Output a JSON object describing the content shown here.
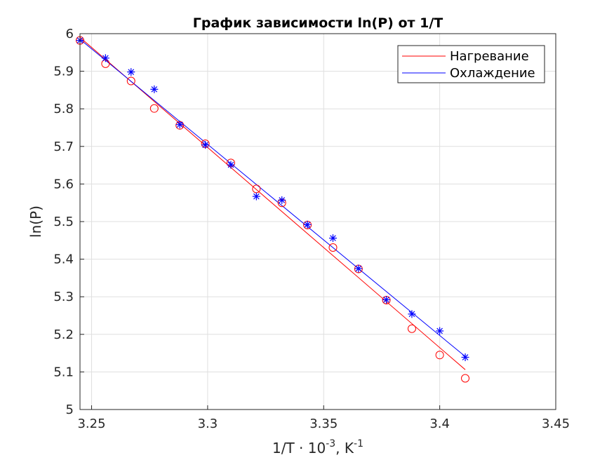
{
  "chart_data": {
    "type": "scatter",
    "title": "График зависимости ln(P) от 1/T",
    "xlabel": {
      "main": "1/T · 10",
      "exp1": "-3",
      "mid": ", K",
      "exp2": "-1"
    },
    "ylabel": "ln(P)",
    "xlim": [
      3.245,
      3.45
    ],
    "ylim": [
      5,
      6
    ],
    "xticks": [
      3.25,
      3.3,
      3.35,
      3.4,
      3.45
    ],
    "xtick_labels": [
      "3.25",
      "3.3",
      "3.35",
      "3.4",
      "3.45"
    ],
    "yticks": [
      5,
      5.1,
      5.2,
      5.3,
      5.4,
      5.5,
      5.6,
      5.7,
      5.8,
      5.9,
      6
    ],
    "ytick_labels": [
      "5",
      "5.1",
      "5.2",
      "5.3",
      "5.4",
      "5.5",
      "5.6",
      "5.7",
      "5.8",
      "5.9",
      "6"
    ],
    "grid": true,
    "legend_position": "top-right",
    "series": [
      {
        "name": "Нагревание",
        "color": "#ff0000",
        "marker": "circle",
        "x": [
          3.245,
          3.256,
          3.267,
          3.277,
          3.288,
          3.299,
          3.31,
          3.321,
          3.332,
          3.343,
          3.354,
          3.365,
          3.377,
          3.388,
          3.4,
          3.411
        ],
        "y": [
          5.982,
          5.92,
          5.874,
          5.801,
          5.756,
          5.707,
          5.656,
          5.587,
          5.55,
          5.491,
          5.431,
          5.374,
          5.291,
          5.215,
          5.145,
          5.083
        ],
        "fit": {
          "x": [
            3.245,
            3.411
          ],
          "y": [
            5.99,
            5.106
          ]
        }
      },
      {
        "name": "Охлаждение",
        "color": "#0000ff",
        "marker": "asterisk",
        "x": [
          3.245,
          3.256,
          3.267,
          3.277,
          3.288,
          3.299,
          3.31,
          3.321,
          3.332,
          3.343,
          3.354,
          3.365,
          3.377,
          3.388,
          3.4,
          3.411
        ],
        "y": [
          5.982,
          5.935,
          5.898,
          5.852,
          5.758,
          5.704,
          5.651,
          5.567,
          5.557,
          5.492,
          5.456,
          5.375,
          5.292,
          5.254,
          5.209,
          5.139
        ],
        "fit": {
          "x": [
            3.245,
            3.411
          ],
          "y": [
            5.985,
            5.141
          ]
        }
      }
    ]
  }
}
